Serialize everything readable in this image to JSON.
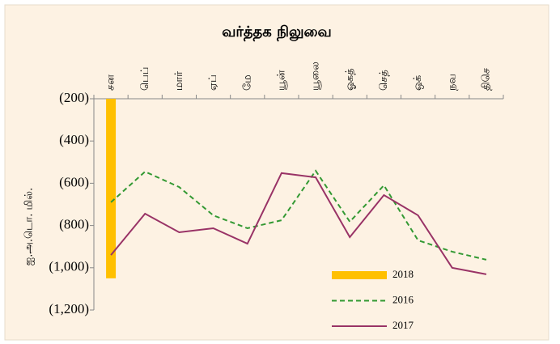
{
  "chart_data": {
    "type": "line",
    "title": "வர்த்தக நிலுவை",
    "y_label": "ஐ.அ.டொ. மில்.",
    "categories": [
      "சன",
      "பெப்",
      "மார்",
      "ஏப்",
      "மே",
      "யூன்",
      "யூலை",
      "ஓகத்",
      "செத்",
      "ஒக்",
      "நவ",
      "திசெ"
    ],
    "series": [
      {
        "name": "2018",
        "type": "bar",
        "color": "#ffc000",
        "values": [
          -1050,
          null,
          null,
          null,
          null,
          null,
          null,
          null,
          null,
          null,
          null,
          null
        ]
      },
      {
        "name": "2016",
        "type": "line",
        "style": "dashed",
        "color": "#339933",
        "values": [
          -690,
          -545,
          -618,
          -752,
          -813,
          -775,
          -541,
          -782,
          -610,
          -870,
          -924,
          -962
        ]
      },
      {
        "name": "2017",
        "type": "line",
        "style": "solid",
        "color": "#993366",
        "values": [
          -940,
          -744,
          -832,
          -813,
          -886,
          -552,
          -572,
          -855,
          -656,
          -752,
          -1000,
          -1031
        ]
      }
    ],
    "ylim": [
      -1200,
      -200
    ],
    "yticks": [
      {
        "value": -200,
        "label": "(200)"
      },
      {
        "value": -400,
        "label": "(400)"
      },
      {
        "value": -600,
        "label": "(600)"
      },
      {
        "value": -800,
        "label": "(800)"
      },
      {
        "value": -1000,
        "label": "(1,000)"
      },
      {
        "value": -1200,
        "label": "(1,200)"
      }
    ],
    "grid": false,
    "legend": "lower right"
  }
}
